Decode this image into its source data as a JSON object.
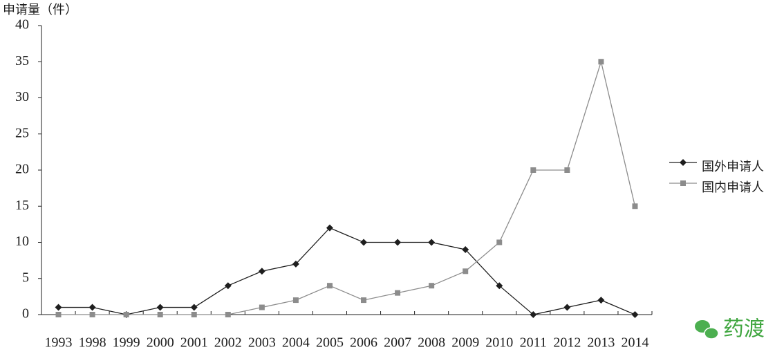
{
  "chart_data": {
    "type": "line",
    "y_label": "申请量（件）",
    "categories": [
      "1993",
      "1998",
      "1999",
      "2000",
      "2001",
      "2002",
      "2003",
      "2004",
      "2005",
      "2006",
      "2007",
      "2008",
      "2009",
      "2010",
      "2011",
      "2012",
      "2013",
      "2014"
    ],
    "series": [
      {
        "name": "国外申请人",
        "color": "#1e1e1e",
        "marker": "diamond",
        "values": [
          1,
          1,
          0,
          1,
          1,
          4,
          6,
          7,
          12,
          10,
          10,
          10,
          9,
          4,
          0,
          1,
          2,
          0
        ]
      },
      {
        "name": "国内申请人",
        "color": "#8c8c8c",
        "marker": "square",
        "values": [
          0,
          0,
          0,
          0,
          0,
          0,
          1,
          2,
          4,
          2,
          3,
          4,
          6,
          10,
          20,
          20,
          35,
          15
        ]
      }
    ],
    "ylim": [
      0,
      40
    ],
    "yticks": [
      0,
      5,
      10,
      15,
      20,
      25,
      30,
      35,
      40
    ],
    "legend": "right",
    "watermark": "药渡"
  }
}
